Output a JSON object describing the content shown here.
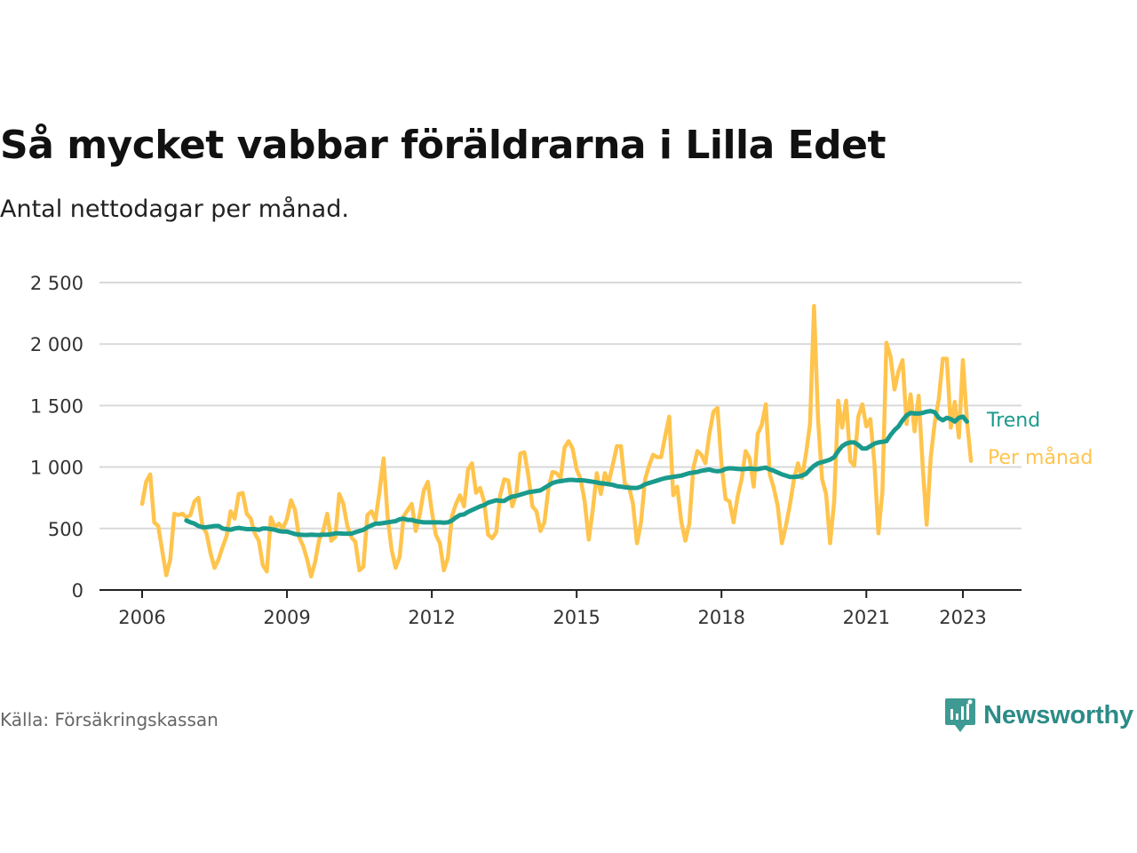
{
  "header": {
    "title": "Så mycket vabbar föräldrarna i Lilla Edet",
    "subtitle": "Antal nettodagar per månad."
  },
  "footer": {
    "source": "Källa: Försäkringskassan",
    "brand": "Newsworthy"
  },
  "chart_data": {
    "type": "line",
    "title": "Så mycket vabbar föräldrarna i Lilla Edet",
    "subtitle": "Antal nettodagar per månad.",
    "xlabel": "",
    "ylabel": "",
    "x_ticks": [
      "2006",
      "2009",
      "2012",
      "2015",
      "2018",
      "2021",
      "2023"
    ],
    "y_ticks": [
      "0",
      "500",
      "1 000",
      "1 500",
      "2 000",
      "2 500"
    ],
    "ylim": [
      0,
      2500
    ],
    "xlim": [
      "2006-01",
      "2023-12"
    ],
    "grid": "horizontal",
    "colors": {
      "trend": "#1a9a8c",
      "monthly": "#ffc44d",
      "axis": "#222222",
      "grid": "#d9d9d9"
    },
    "series": [
      {
        "name": "Per månad",
        "start": "2006-01",
        "values": [
          700,
          880,
          940,
          550,
          520,
          320,
          120,
          250,
          620,
          610,
          620,
          590,
          610,
          720,
          750,
          520,
          460,
          300,
          180,
          250,
          350,
          440,
          640,
          580,
          780,
          790,
          620,
          580,
          460,
          400,
          200,
          150,
          590,
          510,
          540,
          500,
          580,
          730,
          650,
          430,
          360,
          250,
          110,
          230,
          410,
          480,
          620,
          400,
          430,
          780,
          700,
          520,
          430,
          390,
          160,
          190,
          610,
          640,
          570,
          800,
          1070,
          600,
          330,
          180,
          270,
          600,
          650,
          700,
          480,
          610,
          810,
          880,
          640,
          450,
          380,
          160,
          260,
          600,
          700,
          770,
          680,
          980,
          1030,
          790,
          830,
          720,
          450,
          420,
          470,
          770,
          900,
          890,
          680,
          780,
          1110,
          1120,
          930,
          680,
          640,
          480,
          550,
          830,
          960,
          950,
          910,
          1160,
          1210,
          1150,
          980,
          900,
          720,
          410,
          650,
          950,
          780,
          950,
          880,
          1020,
          1170,
          1170,
          860,
          840,
          700,
          380,
          550,
          900,
          1010,
          1100,
          1080,
          1080,
          1250,
          1410,
          770,
          840,
          560,
          400,
          540,
          990,
          1130,
          1100,
          1030,
          1270,
          1450,
          1480,
          1030,
          740,
          720,
          550,
          760,
          900,
          1130,
          1070,
          840,
          1270,
          1340,
          1510,
          940,
          830,
          680,
          380,
          520,
          690,
          900,
          1030,
          910,
          1110,
          1350,
          2310,
          1390,
          900,
          780,
          380,
          720,
          1540,
          1320,
          1540,
          1050,
          1010,
          1410,
          1510,
          1330,
          1390,
          1030,
          460,
          800,
          2010,
          1900,
          1630,
          1780,
          1870,
          1350,
          1590,
          1290,
          1580,
          1010,
          530,
          1080,
          1360,
          1550,
          1880,
          1880,
          1320,
          1530,
          1240,
          1870,
          1380,
          1050
        ]
      },
      {
        "name": "Trend",
        "start": "2006-12",
        "values": [
          565,
          550,
          540,
          520,
          510,
          510,
          515,
          520,
          520,
          500,
          495,
          490,
          500,
          505,
          500,
          495,
          495,
          495,
          490,
          500,
          500,
          495,
          490,
          480,
          475,
          475,
          465,
          455,
          450,
          448,
          447,
          450,
          448,
          447,
          450,
          450,
          453,
          460,
          460,
          458,
          458,
          458,
          470,
          480,
          490,
          510,
          525,
          540,
          540,
          545,
          550,
          555,
          560,
          575,
          580,
          570,
          570,
          560,
          555,
          550,
          550,
          550,
          550,
          550,
          548,
          550,
          565,
          590,
          610,
          615,
          635,
          650,
          665,
          680,
          690,
          710,
          720,
          730,
          725,
          725,
          745,
          760,
          765,
          775,
          785,
          795,
          800,
          805,
          810,
          830,
          850,
          870,
          880,
          885,
          890,
          895,
          895,
          892,
          892,
          890,
          885,
          880,
          875,
          868,
          865,
          860,
          855,
          845,
          840,
          835,
          832,
          830,
          830,
          840,
          860,
          870,
          880,
          890,
          900,
          910,
          915,
          920,
          925,
          930,
          940,
          950,
          955,
          960,
          970,
          975,
          980,
          970,
          965,
          970,
          985,
          990,
          988,
          985,
          983,
          985,
          987,
          984,
          983,
          990,
          995,
          980,
          970,
          955,
          940,
          930,
          920,
          920,
          922,
          930,
          945,
          980,
          1010,
          1030,
          1040,
          1050,
          1060,
          1080,
          1130,
          1170,
          1190,
          1200,
          1200,
          1180,
          1150,
          1150,
          1170,
          1190,
          1200,
          1205,
          1210,
          1260,
          1300,
          1330,
          1380,
          1420,
          1440,
          1435,
          1435,
          1440,
          1450,
          1455,
          1445,
          1400,
          1380,
          1400,
          1390,
          1370,
          1400,
          1410,
          1370
        ]
      }
    ]
  }
}
